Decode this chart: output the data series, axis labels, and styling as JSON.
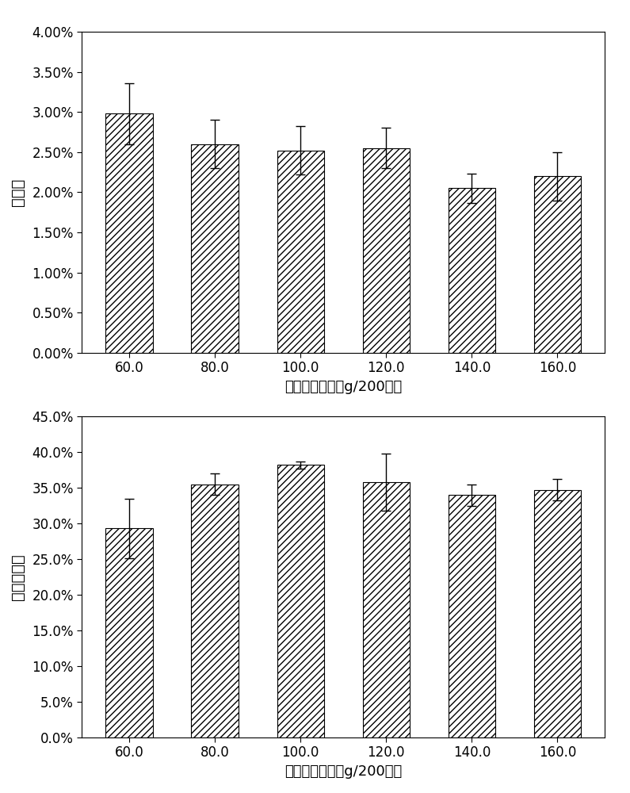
{
  "categories": [
    "60.0",
    "80.0",
    "100.0",
    "120.0",
    "140.0",
    "160.0"
  ],
  "chart1": {
    "values": [
      0.0298,
      0.026,
      0.0252,
      0.0255,
      0.0205,
      0.022
    ],
    "errors": [
      0.0038,
      0.003,
      0.003,
      0.0025,
      0.0018,
      0.003
    ],
    "ylabel": "转化率",
    "xlabel": "干菇根添加量（g/200条）",
    "ylim": [
      0.0,
      0.04
    ],
    "yticks": [
      0.0,
      0.005,
      0.01,
      0.015,
      0.02,
      0.025,
      0.03,
      0.035,
      0.04
    ],
    "ytick_labels": [
      "0.00%",
      "0.50%",
      "1.00%",
      "1.50%",
      "2.00%",
      "2.50%",
      "3.00%",
      "3.50%",
      "4.00%"
    ]
  },
  "chart2": {
    "values": [
      0.293,
      0.355,
      0.382,
      0.358,
      0.34,
      0.347
    ],
    "errors": [
      0.042,
      0.015,
      0.005,
      0.04,
      0.015,
      0.015
    ],
    "ylabel": "物料减少率",
    "xlabel": "干菇根添加量（g/200条）",
    "ylim": [
      0.0,
      0.45
    ],
    "yticks": [
      0.0,
      0.05,
      0.1,
      0.15,
      0.2,
      0.25,
      0.3,
      0.35,
      0.4,
      0.45
    ],
    "ytick_labels": [
      "0.0%",
      "5.0%",
      "10.0%",
      "15.0%",
      "20.0%",
      "25.0%",
      "30.0%",
      "35.0%",
      "40.0%",
      "45.0%"
    ]
  },
  "bar_color": "#ffffff",
  "hatch": "////",
  "bar_width": 0.55,
  "background_color": "#ffffff",
  "tick_fontsize": 12,
  "label_fontsize": 13,
  "ylabel_fontsize": 14
}
